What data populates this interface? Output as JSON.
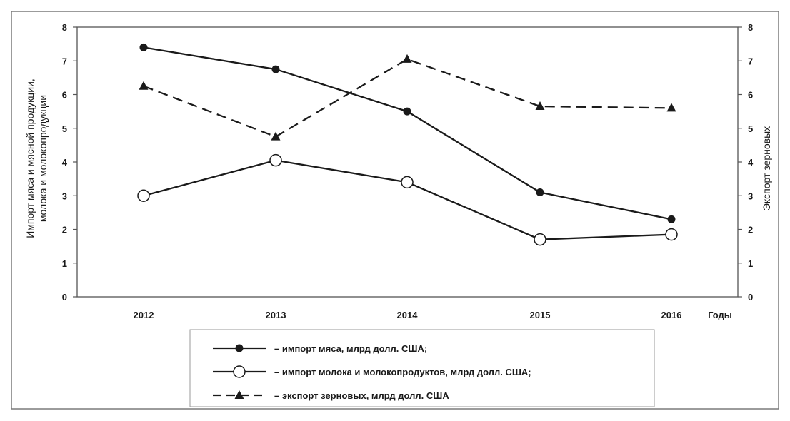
{
  "chart_data": {
    "type": "line",
    "xlabel": "Годы",
    "ylabel_left": "Импорт мяса и мясной продукции, молока и молокопродукции",
    "ylabel_right": "Экспорт зерновых",
    "ylim_left": [
      0,
      8
    ],
    "ylim_right": [
      0,
      8
    ],
    "y_ticks_left": [
      "0",
      "1",
      "2",
      "3",
      "4",
      "5",
      "6",
      "7",
      "8"
    ],
    "y_ticks_right": [
      "0",
      "1",
      "2",
      "3",
      "4",
      "5",
      "6",
      "7",
      "8"
    ],
    "grid": false,
    "legend_position": "bottom",
    "categories": [
      "2012",
      "2013",
      "2014",
      "2015",
      "2016"
    ],
    "series": [
      {
        "name": "– импорт мяса, млрд долл. США;",
        "marker": "filled-circle",
        "line_style": "solid",
        "axis": "left",
        "values": [
          7.4,
          6.75,
          5.5,
          3.1,
          2.3
        ]
      },
      {
        "name": "– импорт молока и молокопродуктов, млрд долл. США;",
        "marker": "open-circle",
        "line_style": "solid",
        "axis": "left",
        "values": [
          3.0,
          4.05,
          3.4,
          1.7,
          1.85
        ]
      },
      {
        "name": "– экспорт зерновых, млрд долл. США",
        "marker": "filled-triangle",
        "line_style": "dashed",
        "axis": "right",
        "values": [
          6.25,
          4.75,
          7.05,
          5.65,
          5.6
        ]
      }
    ]
  },
  "colors": {
    "line": "#1a1a1a",
    "background": "#ffffff",
    "border": "#7a7a7a"
  }
}
